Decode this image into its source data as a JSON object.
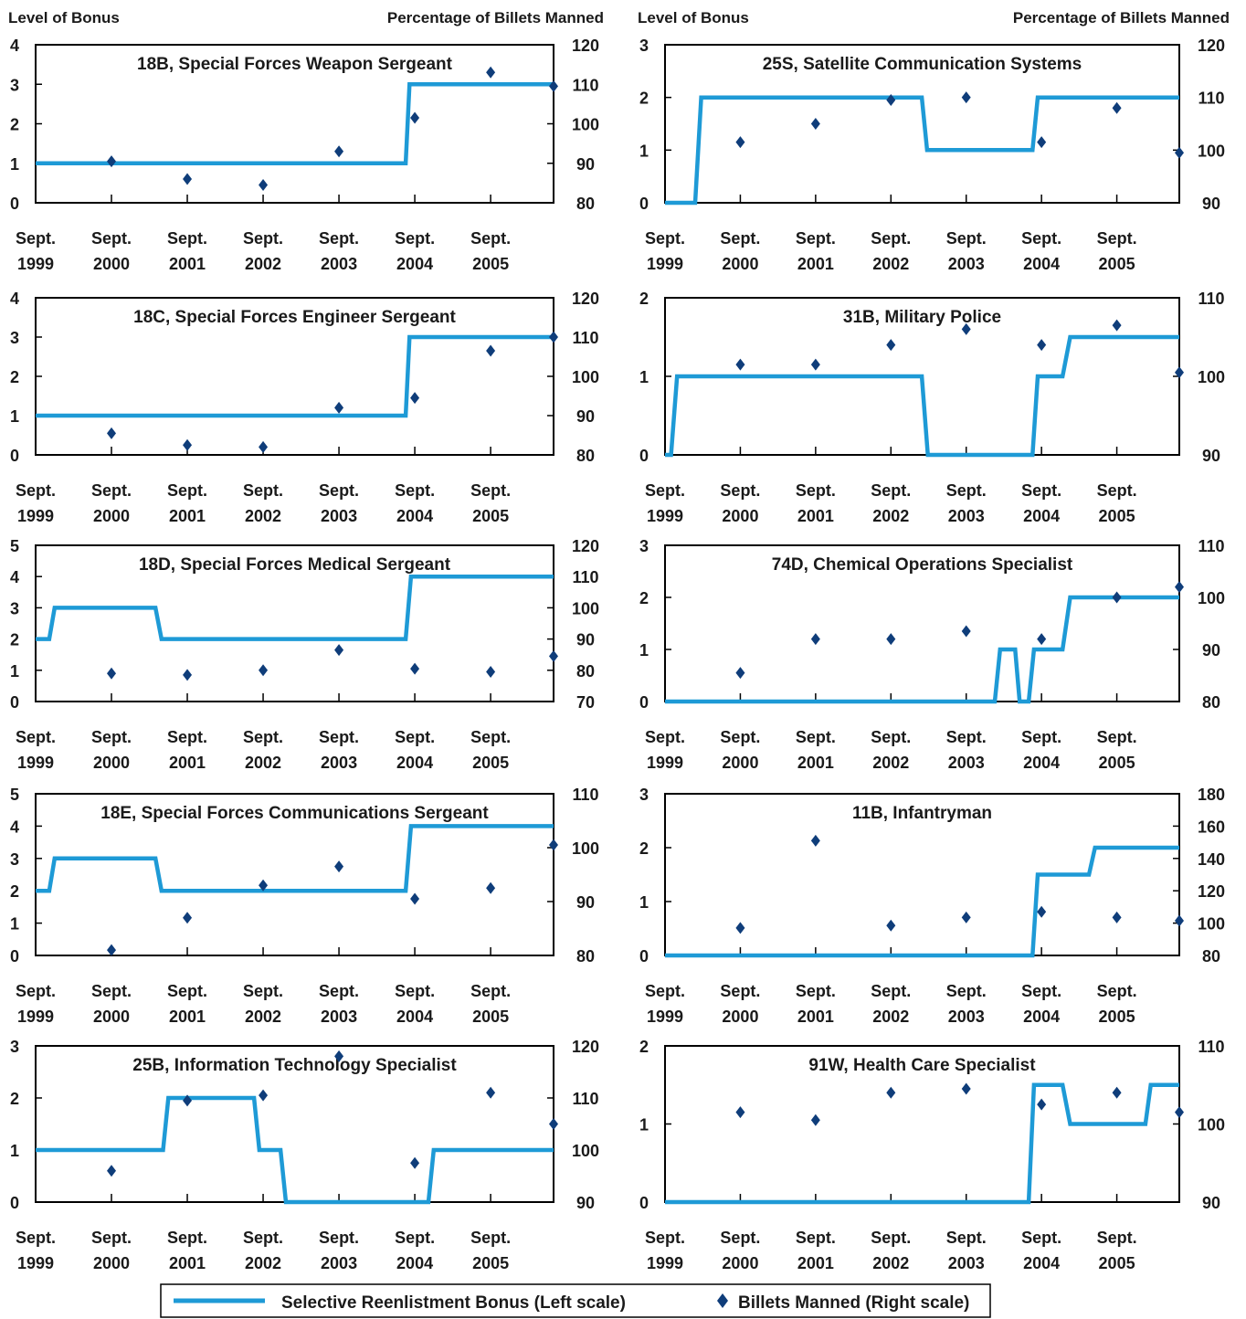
{
  "colors": {
    "bonus_line": "#1e9ad6",
    "billets_marker": "#0f3d7a",
    "frame": "#000000",
    "text": "#1a1a1a"
  },
  "legend": {
    "bonus_label": "Selective Reenlistment Bonus (Left scale)",
    "billets_label": "Billets Manned (Right scale)"
  },
  "common": {
    "left_axis_title": "Level of Bonus",
    "right_axis_title": "Percentage of Billets Manned",
    "x_tick_labels": [
      [
        "Sept.",
        "1999"
      ],
      [
        "Sept.",
        "2000"
      ],
      [
        "Sept.",
        "2001"
      ],
      [
        "Sept.",
        "2002"
      ],
      [
        "Sept.",
        "2003"
      ],
      [
        "Sept.",
        "2004"
      ],
      [
        "Sept.",
        "2005"
      ]
    ]
  },
  "chart_data": [
    {
      "type": "line",
      "title": "18B, Special Forces Weapon Sergeant",
      "left_ylim": [
        0,
        4
      ],
      "left_ticks": [
        0,
        1,
        2,
        3,
        4
      ],
      "right_ylim": [
        80,
        120
      ],
      "right_ticks": [
        80,
        90,
        100,
        110,
        120
      ],
      "show_axis_titles": true,
      "xlim": [
        1999.67,
        2006.5
      ],
      "series": [
        {
          "name": "Selective Reenlistment Bonus (Left scale)",
          "axis": "left",
          "x": [
            1999.67,
            2004.55,
            2004.6,
            2006.5
          ],
          "y": [
            1,
            1,
            3,
            3
          ]
        },
        {
          "name": "Billets Manned (Right scale)",
          "axis": "right",
          "x": [
            2000.67,
            2001.67,
            2002.67,
            2003.67,
            2004.67,
            2005.67,
            2006.5
          ],
          "y": [
            90.5,
            86,
            84.5,
            93,
            101.5,
            113,
            109.5
          ]
        }
      ]
    },
    {
      "type": "line",
      "title": "25S, Satellite Communication Systems",
      "left_ylim": [
        0,
        3
      ],
      "left_ticks": [
        0,
        1,
        2,
        3
      ],
      "right_ylim": [
        90,
        120
      ],
      "right_ticks": [
        90,
        100,
        110,
        120
      ],
      "show_axis_titles": true,
      "xlim": [
        1999.67,
        2006.5
      ],
      "series": [
        {
          "name": "Selective Reenlistment Bonus (Left scale)",
          "axis": "left",
          "x": [
            1999.67,
            2000.07,
            2000.15,
            2003.08,
            2003.15,
            2004.55,
            2004.62,
            2006.5
          ],
          "y": [
            0,
            0,
            2,
            2,
            1,
            1,
            2,
            2
          ]
        },
        {
          "name": "Billets Manned (Right scale)",
          "axis": "right",
          "x": [
            2000.67,
            2001.67,
            2002.67,
            2003.67,
            2004.67,
            2005.67,
            2006.5
          ],
          "y": [
            101.5,
            105,
            109.5,
            110,
            101.5,
            108,
            99.5
          ]
        }
      ]
    },
    {
      "type": "line",
      "title": "18C, Special Forces Engineer Sergeant",
      "left_ylim": [
        0,
        4
      ],
      "left_ticks": [
        0,
        1,
        2,
        3,
        4
      ],
      "right_ylim": [
        80,
        120
      ],
      "right_ticks": [
        80,
        90,
        100,
        110,
        120
      ],
      "show_axis_titles": false,
      "xlim": [
        1999.67,
        2006.5
      ],
      "series": [
        {
          "name": "Selective Reenlistment Bonus (Left scale)",
          "axis": "left",
          "x": [
            1999.67,
            2004.55,
            2004.6,
            2006.5
          ],
          "y": [
            1,
            1,
            3,
            3
          ]
        },
        {
          "name": "Billets Manned (Right scale)",
          "axis": "right",
          "x": [
            2000.67,
            2001.67,
            2002.67,
            2003.67,
            2004.67,
            2005.67,
            2006.5
          ],
          "y": [
            85.5,
            82.5,
            82,
            92,
            94.5,
            106.5,
            110
          ]
        }
      ]
    },
    {
      "type": "line",
      "title": "31B, Military Police",
      "left_ylim": [
        0,
        2
      ],
      "left_ticks": [
        0,
        1,
        2
      ],
      "right_ylim": [
        90,
        110
      ],
      "right_ticks": [
        90,
        100,
        110
      ],
      "show_axis_titles": false,
      "xlim": [
        1999.67,
        2006.5
      ],
      "series": [
        {
          "name": "Selective Reenlistment Bonus (Left scale)",
          "axis": "left",
          "x": [
            1999.67,
            1999.75,
            1999.83,
            2003.08,
            2003.16,
            2004.55,
            2004.62,
            2004.95,
            2005.05,
            2006.5
          ],
          "y": [
            0,
            0,
            1,
            1,
            0,
            0,
            1,
            1,
            1.5,
            1.5
          ]
        },
        {
          "name": "Billets Manned (Right scale)",
          "axis": "right",
          "x": [
            2000.67,
            2001.67,
            2002.67,
            2003.67,
            2004.67,
            2005.67,
            2006.5
          ],
          "y": [
            101.5,
            101.5,
            104,
            106,
            104,
            106.5,
            100.5
          ]
        }
      ]
    },
    {
      "type": "line",
      "title": "18D, Special Forces Medical Sergeant",
      "left_ylim": [
        0,
        5
      ],
      "left_ticks": [
        0,
        1,
        2,
        3,
        4,
        5
      ],
      "right_ylim": [
        70,
        120
      ],
      "right_ticks": [
        70,
        80,
        90,
        100,
        110,
        120
      ],
      "show_axis_titles": false,
      "xlim": [
        1999.67,
        2006.5
      ],
      "series": [
        {
          "name": "Selective Reenlistment Bonus (Left scale)",
          "axis": "left",
          "x": [
            1999.67,
            1999.85,
            1999.92,
            2001.25,
            2001.33,
            2004.55,
            2004.62,
            2006.5
          ],
          "y": [
            2,
            2,
            3,
            3,
            2,
            2,
            4,
            4
          ]
        },
        {
          "name": "Billets Manned (Right scale)",
          "axis": "right",
          "x": [
            2000.67,
            2001.67,
            2002.67,
            2003.67,
            2004.67,
            2005.67,
            2006.5
          ],
          "y": [
            79,
            78.5,
            80,
            86.5,
            80.5,
            79.5,
            84.5
          ]
        }
      ]
    },
    {
      "type": "line",
      "title": "74D, Chemical Operations Specialist",
      "left_ylim": [
        0,
        3
      ],
      "left_ticks": [
        0,
        1,
        2,
        3
      ],
      "right_ylim": [
        80,
        110
      ],
      "right_ticks": [
        80,
        90,
        100,
        110
      ],
      "show_axis_titles": false,
      "xlim": [
        1999.67,
        2006.5
      ],
      "series": [
        {
          "name": "Selective Reenlistment Bonus (Left scale)",
          "axis": "left",
          "x": [
            1999.67,
            2004.05,
            2004.12,
            2004.32,
            2004.38,
            2004.5,
            2004.57,
            2004.95,
            2005.05,
            2006.5
          ],
          "y": [
            0,
            0,
            1,
            1,
            0,
            0,
            1,
            1,
            2,
            2
          ]
        },
        {
          "name": "Billets Manned (Right scale)",
          "axis": "right",
          "x": [
            2000.67,
            2001.67,
            2002.67,
            2003.67,
            2004.67,
            2005.67,
            2006.5
          ],
          "y": [
            85.5,
            92,
            92,
            93.5,
            92,
            100,
            102
          ]
        }
      ]
    },
    {
      "type": "line",
      "title": "18E, Special Forces Communications Sergeant",
      "left_ylim": [
        0,
        5
      ],
      "left_ticks": [
        0,
        1,
        2,
        3,
        4,
        5
      ],
      "right_ylim": [
        80,
        110
      ],
      "right_ticks": [
        80,
        90,
        100,
        110
      ],
      "show_axis_titles": false,
      "xlim": [
        1999.67,
        2006.5
      ],
      "series": [
        {
          "name": "Selective Reenlistment Bonus (Left scale)",
          "axis": "left",
          "x": [
            1999.67,
            1999.85,
            1999.92,
            2001.25,
            2001.33,
            2004.55,
            2004.62,
            2006.5
          ],
          "y": [
            2,
            2,
            3,
            3,
            2,
            2,
            4,
            4
          ]
        },
        {
          "name": "Billets Manned (Right scale)",
          "axis": "right",
          "x": [
            2000.67,
            2001.67,
            2002.67,
            2003.67,
            2004.67,
            2005.67,
            2006.5
          ],
          "y": [
            81,
            87,
            93,
            96.5,
            90.5,
            92.5,
            100.5
          ]
        }
      ]
    },
    {
      "type": "line",
      "title": "11B, Infantryman",
      "left_ylim": [
        0,
        3
      ],
      "left_ticks": [
        0,
        1,
        2,
        3
      ],
      "right_ylim": [
        80,
        180
      ],
      "right_ticks": [
        80,
        100,
        120,
        140,
        160,
        180
      ],
      "show_axis_titles": false,
      "xlim": [
        1999.67,
        2006.5
      ],
      "series": [
        {
          "name": "Selective Reenlistment Bonus (Left scale)",
          "axis": "left",
          "x": [
            1999.67,
            2004.55,
            2004.62,
            2005.3,
            2005.38,
            2006.5
          ],
          "y": [
            0,
            0,
            1.5,
            1.5,
            2,
            2
          ]
        },
        {
          "name": "Billets Manned (Right scale)",
          "axis": "right",
          "x": [
            2000.67,
            2001.67,
            2002.67,
            2003.67,
            2004.67,
            2005.67,
            2006.5
          ],
          "y": [
            97,
            151,
            98.5,
            103.5,
            107,
            103.5,
            101.5
          ]
        }
      ]
    },
    {
      "type": "line",
      "title": "25B, Information Technology Specialist",
      "left_ylim": [
        0,
        3
      ],
      "left_ticks": [
        0,
        1,
        2,
        3
      ],
      "right_ylim": [
        90,
        120
      ],
      "right_ticks": [
        90,
        100,
        110,
        120
      ],
      "show_axis_titles": false,
      "xlim": [
        1999.67,
        2006.5
      ],
      "series": [
        {
          "name": "Selective Reenlistment Bonus (Left scale)",
          "axis": "left",
          "x": [
            1999.67,
            2001.35,
            2001.42,
            2002.55,
            2002.62,
            2002.9,
            2002.97,
            2004.85,
            2004.92,
            2006.5
          ],
          "y": [
            1,
            1,
            2,
            2,
            1,
            1,
            0,
            0,
            1,
            1
          ]
        },
        {
          "name": "Billets Manned (Right scale)",
          "axis": "right",
          "x": [
            2000.67,
            2001.67,
            2002.67,
            2003.67,
            2004.67,
            2005.67,
            2006.5
          ],
          "y": [
            96,
            109.5,
            110.5,
            118,
            97.5,
            111,
            105
          ]
        }
      ]
    },
    {
      "type": "line",
      "title": "91W, Health Care Specialist",
      "left_ylim": [
        0,
        2
      ],
      "left_ticks": [
        0,
        1,
        2
      ],
      "right_ylim": [
        90,
        110
      ],
      "right_ticks": [
        90,
        100,
        110
      ],
      "show_axis_titles": false,
      "xlim": [
        1999.67,
        2006.5
      ],
      "series": [
        {
          "name": "Selective Reenlistment Bonus (Left scale)",
          "axis": "left",
          "x": [
            1999.67,
            2004.5,
            2004.57,
            2004.95,
            2005.05,
            2006.05,
            2006.12,
            2006.5
          ],
          "y": [
            0,
            0,
            1.5,
            1.5,
            1,
            1,
            1.5,
            1.5
          ]
        },
        {
          "name": "Billets Manned (Right scale)",
          "axis": "right",
          "x": [
            2000.67,
            2001.67,
            2002.67,
            2003.67,
            2004.67,
            2005.67,
            2006.5
          ],
          "y": [
            101.5,
            100.5,
            104,
            104.5,
            102.5,
            104,
            101.5
          ]
        }
      ]
    }
  ]
}
